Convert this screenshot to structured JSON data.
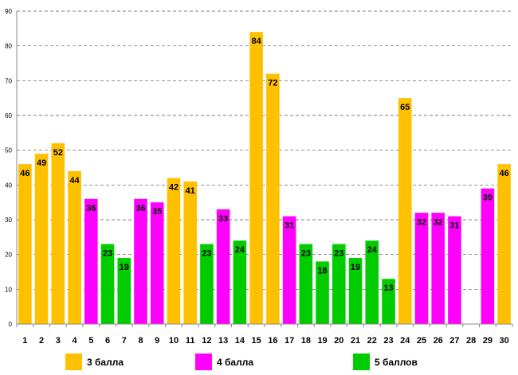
{
  "chart_data": {
    "type": "bar",
    "categories": [
      "1",
      "2",
      "3",
      "4",
      "5",
      "6",
      "7",
      "8",
      "9",
      "10",
      "11",
      "12",
      "13",
      "14",
      "15",
      "16",
      "17",
      "18",
      "19",
      "20",
      "21",
      "22",
      "23",
      "24",
      "25",
      "26",
      "27",
      "28",
      "29",
      "30"
    ],
    "values": [
      46,
      49,
      52,
      44,
      36,
      23,
      19,
      36,
      35,
      42,
      41,
      23,
      33,
      24,
      84,
      72,
      31,
      23,
      18,
      23,
      19,
      24,
      13,
      65,
      32,
      32,
      31,
      null,
      39,
      46
    ],
    "groups": [
      "3",
      "3",
      "3",
      "3",
      "4",
      "5",
      "5",
      "4",
      "4",
      "3",
      "3",
      "5",
      "4",
      "5",
      "3",
      "3",
      "4",
      "5",
      "5",
      "5",
      "5",
      "5",
      "5",
      "3",
      "4",
      "4",
      "4",
      null,
      "4",
      "3"
    ],
    "series": [
      {
        "key": "3",
        "name": "3 балла",
        "color": "#FFC000"
      },
      {
        "key": "4",
        "name": "4 балла",
        "color": "#FF00FF"
      },
      {
        "key": "5",
        "name": "5 баллов",
        "color": "#00CC00"
      }
    ],
    "title": "",
    "xlabel": "",
    "ylabel": "",
    "ylim": [
      0,
      90
    ],
    "yticks": [
      "0",
      "10",
      "20",
      "30",
      "40",
      "50",
      "60",
      "70",
      "80",
      "90"
    ],
    "grid": true,
    "legend_position": "bottom"
  }
}
